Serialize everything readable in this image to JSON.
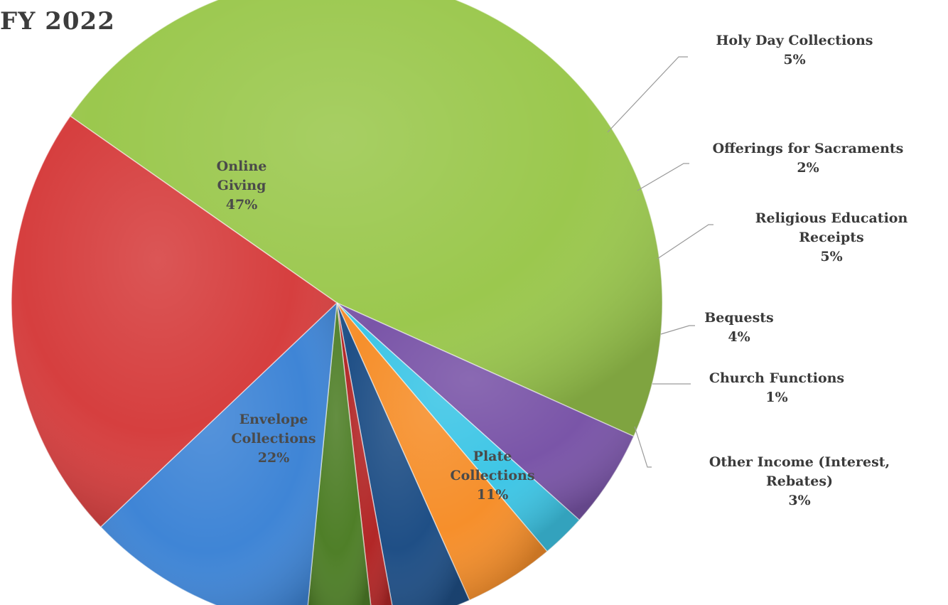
{
  "chart_data": {
    "type": "pie",
    "title": "FY 2022",
    "slices": [
      {
        "label": [
          "Online",
          "Giving"
        ],
        "percent": "47%",
        "value": 47.0,
        "color": "#9bc84e"
      },
      {
        "label": [
          "Holy Day Collections"
        ],
        "percent": "5%",
        "value": 4.9,
        "color": "#7a55a8"
      },
      {
        "label": [
          "Offerings for Sacraments"
        ],
        "percent": "2%",
        "value": 2.2,
        "color": "#3ec6e6"
      },
      {
        "label": [
          "Religious Education",
          "Receipts"
        ],
        "percent": "5%",
        "value": 4.5,
        "color": "#f68f2b"
      },
      {
        "label": [
          "Bequests"
        ],
        "percent": "4%",
        "value": 3.8,
        "color": "#1f4f86"
      },
      {
        "label": [
          "Church Functions"
        ],
        "percent": "1%",
        "value": 1.1,
        "color": "#b22727"
      },
      {
        "label": [
          "Other Income (Interest,",
          "Rebates)"
        ],
        "percent": "3%",
        "value": 3.3,
        "color": "#4f7f28"
      },
      {
        "label": [
          "Plate",
          "Collections"
        ],
        "percent": "11%",
        "value": 11.4,
        "color": "#3f85d6"
      },
      {
        "label": [
          "Envelope",
          "Collections"
        ],
        "percent": "22%",
        "value": 21.8,
        "color": "#d63f3f"
      }
    ]
  }
}
